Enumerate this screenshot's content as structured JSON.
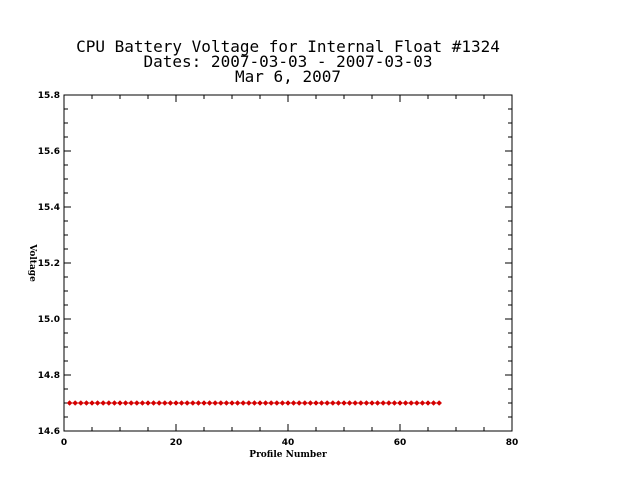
{
  "chart_data": {
    "type": "line",
    "title_lines": [
      "CPU Battery Voltage for Internal Float #1324",
      "Dates:  2007-03-03 -  2007-03-03",
      "Mar  6, 2007"
    ],
    "xlabel": "Profile Number",
    "ylabel": "Voltage",
    "xlim": [
      0,
      80
    ],
    "ylim": [
      14.6,
      15.8
    ],
    "x_ticks": [
      0,
      20,
      40,
      60,
      80
    ],
    "x_tick_labels": [
      "0",
      "20",
      "40",
      "60",
      "80"
    ],
    "y_ticks": [
      14.6,
      14.8,
      15.0,
      15.2,
      15.4,
      15.6,
      15.8
    ],
    "y_tick_labels": [
      "14.6",
      "14.8",
      "15.0",
      "15.2",
      "15.4",
      "15.6",
      "15.8"
    ],
    "grid": false,
    "series": [
      {
        "color": "#d40000",
        "marker": "diamond",
        "x_start": 1,
        "x_end": 67,
        "y": 14.7
      }
    ]
  }
}
